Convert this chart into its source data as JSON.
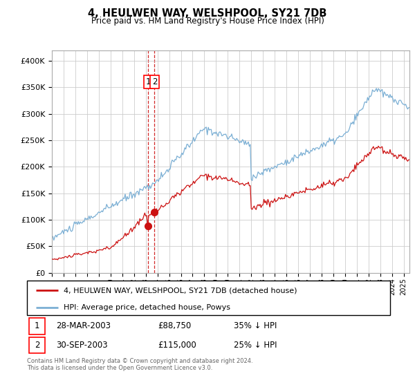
{
  "title": "4, HEULWEN WAY, WELSHPOOL, SY21 7DB",
  "subtitle": "Price paid vs. HM Land Registry's House Price Index (HPI)",
  "legend_line1": "4, HEULWEN WAY, WELSHPOOL, SY21 7DB (detached house)",
  "legend_line2": "HPI: Average price, detached house, Powys",
  "footer1": "Contains HM Land Registry data © Crown copyright and database right 2024.",
  "footer2": "This data is licensed under the Open Government Licence v3.0.",
  "transaction1_date": "28-MAR-2003",
  "transaction1_price": "£88,750",
  "transaction1_hpi": "35% ↓ HPI",
  "transaction2_date": "30-SEP-2003",
  "transaction2_price": "£115,000",
  "transaction2_hpi": "25% ↓ HPI",
  "hpi_color": "#7bafd4",
  "price_color": "#cc1111",
  "marker_color": "#cc1111",
  "vline_color": "#cc1111",
  "grid_color": "#cccccc",
  "background_color": "#ffffff",
  "ylim": [
    0,
    420000
  ],
  "yticks": [
    0,
    50000,
    100000,
    150000,
    200000,
    250000,
    300000,
    350000,
    400000
  ],
  "xstart": 1995.0,
  "xend": 2025.5,
  "t1_year": 2003.22,
  "t2_year": 2003.75,
  "price1": 88750,
  "price2": 115000
}
